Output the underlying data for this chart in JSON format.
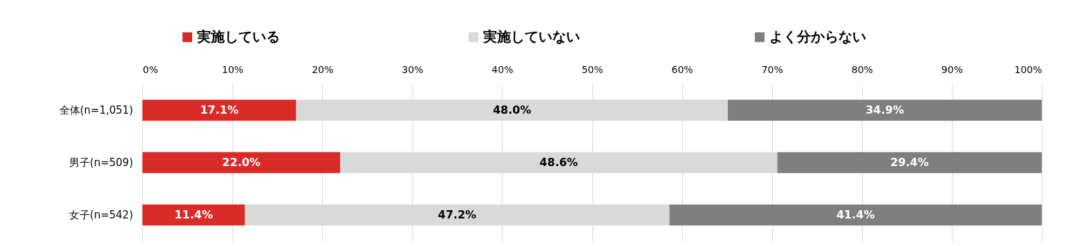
{
  "chart_data": {
    "type": "bar",
    "orientation": "horizontal",
    "stacked": true,
    "categories": [
      "全体(n=1,051)",
      "男子(n=509)",
      "女子(n=542)"
    ],
    "series": [
      {
        "name": "実施している",
        "color": "#d92b27",
        "values": [
          17.1,
          22.0,
          11.4
        ],
        "value_labels": [
          "17.1%",
          "22.0%",
          "11.4%"
        ]
      },
      {
        "name": "実施していない",
        "color": "#d9d9d9",
        "values": [
          48.0,
          48.6,
          47.2
        ],
        "value_labels": [
          "48.0%",
          "48.6%",
          "47.2%"
        ]
      },
      {
        "name": "よく分からない",
        "color": "#7f7f7f",
        "values": [
          34.9,
          29.4,
          41.4
        ],
        "value_labels": [
          "34.9%",
          "29.4%",
          "41.4%"
        ]
      }
    ],
    "xlim": [
      0,
      100
    ],
    "xticks": [
      {
        "value": 0,
        "label": "0%"
      },
      {
        "value": 10,
        "label": "10%"
      },
      {
        "value": 20,
        "label": "20%"
      },
      {
        "value": 30,
        "label": "30%"
      },
      {
        "value": 40,
        "label": "40%"
      },
      {
        "value": 50,
        "label": "50%"
      },
      {
        "value": 60,
        "label": "60%"
      },
      {
        "value": 70,
        "label": "70%"
      },
      {
        "value": 80,
        "label": "80%"
      },
      {
        "value": 90,
        "label": "90%"
      },
      {
        "value": 100,
        "label": "100%"
      }
    ],
    "grid": "x",
    "legend": "top"
  }
}
